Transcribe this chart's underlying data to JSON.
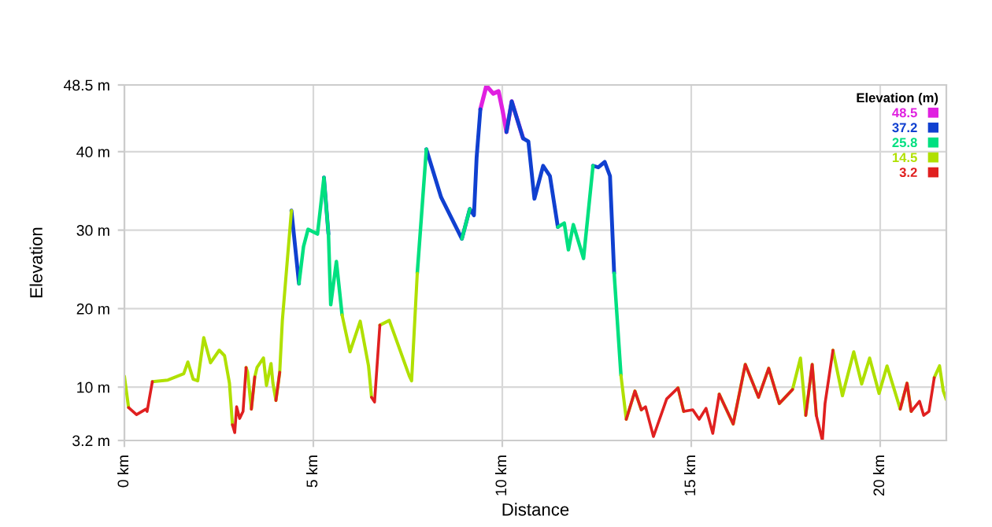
{
  "chart_data": {
    "type": "line",
    "xlabel": "Distance",
    "ylabel": "Elevation",
    "legend_title": "Elevation (m)",
    "legend": "top right",
    "x": [
      0,
      0.11,
      0.32,
      0.57,
      0.6,
      0.74,
      1.15,
      1.57,
      1.68,
      1.82,
      1.94,
      2.1,
      2.28,
      2.51,
      2.65,
      2.78,
      2.86,
      2.92,
      2.97,
      3.05,
      3.14,
      3.22,
      3.26,
      3.36,
      3.45,
      3.51,
      3.68,
      3.76,
      3.88,
      3.93,
      4.01,
      4.11,
      4.18,
      4.42,
      4.62,
      4.74,
      4.86,
      5.11,
      5.28,
      5.4,
      5.46,
      5.61,
      5.76,
      5.97,
      6.24,
      6.46,
      6.54,
      6.62,
      6.76,
      7.01,
      7.54,
      7.6,
      7.75,
      7.99,
      8.38,
      8.93,
      9.14,
      9.25,
      9.32,
      9.42,
      9.58,
      9.76,
      9.9,
      10.01,
      10.11,
      10.25,
      10.55,
      10.69,
      10.85,
      11.08,
      11.26,
      11.47,
      11.64,
      11.75,
      11.88,
      12.15,
      12.4,
      12.54,
      12.71,
      12.85,
      12.96,
      13.14,
      13.28,
      13.51,
      13.68,
      13.79,
      14.0,
      14.35,
      14.65,
      14.8,
      15.04,
      15.21,
      15.39,
      15.57,
      15.74,
      16.11,
      16.43,
      16.78,
      17.05,
      17.33,
      17.68,
      17.89,
      18.03,
      18.2,
      18.31,
      18.47,
      18.54,
      18.75,
      19.0,
      19.3,
      19.51,
      19.72,
      19.97,
      20.18,
      20.53,
      20.71,
      20.82,
      21.04,
      21.15,
      21.29,
      21.43,
      21.57,
      21.67,
      21.75
    ],
    "series": [
      {
        "name": "48.5",
        "color": "#e020e0",
        "values": [
          null,
          null,
          null,
          null,
          null,
          null,
          null,
          null,
          null,
          null,
          null,
          null,
          null,
          null,
          null,
          null,
          null,
          null,
          null,
          null,
          null,
          null,
          null,
          null,
          null,
          null,
          null,
          null,
          null,
          null,
          null,
          null,
          null,
          null,
          null,
          null,
          null,
          null,
          null,
          null,
          null,
          null,
          null,
          null,
          null,
          null,
          null,
          null,
          null,
          null,
          null,
          null,
          null,
          null,
          null,
          null,
          null,
          null,
          null,
          45.4,
          48.4,
          47.4,
          47.7,
          45.2,
          42.5,
          46.4,
          41.7,
          null,
          null,
          null,
          null,
          null,
          null,
          null,
          null,
          null,
          null,
          null,
          null,
          null,
          null,
          null,
          null,
          null,
          null,
          null,
          null,
          null,
          null,
          null,
          null,
          null,
          null,
          null,
          null,
          null,
          null,
          null,
          null,
          null,
          null,
          null,
          null,
          null,
          null,
          null,
          null,
          null,
          null,
          null,
          null,
          null,
          null,
          null,
          null,
          null,
          null,
          null,
          null,
          null,
          null,
          null,
          null,
          null
        ]
      },
      {
        "name": "37.2",
        "color": "#1040d0",
        "values": [
          null,
          null,
          null,
          null,
          null,
          null,
          null,
          null,
          null,
          null,
          null,
          null,
          null,
          null,
          null,
          null,
          null,
          null,
          null,
          null,
          null,
          null,
          null,
          null,
          null,
          null,
          null,
          null,
          null,
          null,
          null,
          null,
          null,
          32.5,
          23.2,
          null,
          null,
          null,
          36.7,
          29.5,
          null,
          null,
          null,
          null,
          null,
          null,
          null,
          null,
          null,
          null,
          null,
          null,
          null,
          40.3,
          34.2,
          28.9,
          32.7,
          31.9,
          39.2,
          45.4,
          null,
          null,
          null,
          null,
          42.5,
          46.4,
          41.7,
          41.3,
          34.0,
          38.2,
          36.9,
          30.4,
          null,
          null,
          null,
          null,
          38.2,
          38.0,
          38.7,
          36.9,
          24.5,
          null,
          null,
          null,
          null,
          null,
          null,
          null,
          null,
          null,
          null,
          null,
          null,
          null,
          null,
          null,
          null,
          null,
          null,
          null,
          null,
          null,
          null,
          null,
          null,
          null,
          null,
          null,
          null,
          null,
          null,
          null,
          null,
          null,
          null,
          null,
          null,
          null,
          null,
          null,
          null,
          null,
          null,
          null
        ]
      },
      {
        "name": "25.8",
        "color": "#00e080",
        "values": [
          null,
          null,
          null,
          null,
          null,
          null,
          null,
          null,
          null,
          null,
          null,
          null,
          null,
          null,
          null,
          null,
          null,
          null,
          null,
          null,
          null,
          null,
          null,
          null,
          null,
          null,
          null,
          null,
          null,
          null,
          null,
          null,
          null,
          null,
          23.2,
          27.9,
          30.1,
          29.5,
          36.7,
          29.5,
          20.5,
          26.0,
          19.2,
          null,
          null,
          null,
          null,
          null,
          null,
          null,
          null,
          null,
          24.5,
          40.3,
          null,
          28.9,
          32.7,
          null,
          null,
          null,
          null,
          null,
          null,
          null,
          null,
          null,
          null,
          null,
          null,
          null,
          null,
          30.4,
          30.9,
          27.5,
          30.7,
          26.4,
          38.2,
          null,
          null,
          null,
          24.5,
          11.5,
          null,
          null,
          null,
          null,
          null,
          null,
          null,
          null,
          null,
          null,
          null,
          null,
          null,
          null,
          null,
          null,
          null,
          null,
          null,
          null,
          null,
          null,
          null,
          null,
          null,
          null,
          null,
          null,
          null,
          null,
          null,
          null,
          null,
          null,
          null,
          null,
          null,
          null,
          null,
          null,
          null,
          null
        ]
      },
      {
        "name": "14.5",
        "color": "#b0e000",
        "values": [
          11.4,
          7.4,
          null,
          null,
          null,
          10.7,
          10.9,
          11.7,
          13.2,
          11.0,
          10.8,
          16.3,
          13.1,
          14.7,
          14.0,
          10.5,
          5.2,
          null,
          null,
          null,
          null,
          12.5,
          11.9,
          7.2,
          11.3,
          12.5,
          13.7,
          10.2,
          13.0,
          10.5,
          8.3,
          11.9,
          18.5,
          32.5,
          null,
          null,
          null,
          null,
          null,
          null,
          null,
          null,
          19.2,
          14.5,
          18.4,
          12.7,
          8.7,
          null,
          17.9,
          18.5,
          11.4,
          10.8,
          24.5,
          null,
          null,
          null,
          null,
          null,
          null,
          null,
          null,
          null,
          null,
          null,
          null,
          null,
          null,
          null,
          null,
          null,
          null,
          null,
          null,
          null,
          null,
          null,
          null,
          null,
          null,
          null,
          null,
          11.5,
          5.9,
          9.5,
          7.1,
          null,
          null,
          null,
          9.9,
          6.9,
          null,
          null,
          null,
          null,
          9.1,
          5.3,
          12.9,
          8.7,
          12.4,
          7.9,
          9.7,
          13.7,
          6.4,
          12.9,
          6.4,
          null,
          null,
          14.7,
          8.9,
          14.5,
          10.4,
          13.7,
          9.2,
          12.7,
          7.2,
          10.5,
          6.9,
          null,
          null,
          null,
          11.2,
          12.7,
          9.5,
          8.4
        ]
      },
      {
        "name": "3.2",
        "color": "#e02020",
        "values": [
          null,
          7.4,
          6.5,
          7.2,
          6.9,
          10.7,
          null,
          null,
          null,
          null,
          null,
          null,
          null,
          null,
          null,
          null,
          5.2,
          4.2,
          7.5,
          6.0,
          6.9,
          12.5,
          null,
          7.2,
          11.3,
          null,
          null,
          null,
          null,
          null,
          8.3,
          11.9,
          null,
          null,
          null,
          null,
          null,
          null,
          null,
          null,
          null,
          null,
          null,
          null,
          null,
          null,
          8.7,
          8.1,
          17.9,
          null,
          null,
          null,
          null,
          null,
          null,
          null,
          null,
          null,
          null,
          null,
          null,
          null,
          null,
          null,
          null,
          null,
          null,
          null,
          null,
          null,
          null,
          null,
          null,
          null,
          null,
          null,
          null,
          null,
          null,
          null,
          null,
          null,
          5.9,
          9.5,
          7.1,
          7.5,
          3.7,
          8.5,
          9.9,
          6.9,
          7.1,
          5.9,
          7.3,
          4.1,
          9.1,
          5.3,
          12.9,
          8.7,
          12.4,
          7.9,
          9.7,
          null,
          6.4,
          12.9,
          6.4,
          3.2,
          7.9,
          14.7,
          null,
          null,
          null,
          null,
          null,
          null,
          7.2,
          10.5,
          6.9,
          8.2,
          6.4,
          6.9,
          11.2,
          null,
          null,
          null
        ]
      }
    ],
    "xlim": [
      0,
      21.75
    ],
    "xticks": [
      {
        "value": 0,
        "label": "0 km"
      },
      {
        "value": 5,
        "label": "5 km"
      },
      {
        "value": 10,
        "label": "10 km"
      },
      {
        "value": 15,
        "label": "15 km"
      },
      {
        "value": 20,
        "label": "20 km"
      }
    ],
    "ylim": [
      3.2,
      48.5
    ],
    "yticks": [
      {
        "value": 3.2,
        "label": "3.2 m"
      },
      {
        "value": 10,
        "label": "10 m"
      },
      {
        "value": 20,
        "label": "20 m"
      },
      {
        "value": 30,
        "label": "30 m"
      },
      {
        "value": 40,
        "label": "40 m"
      },
      {
        "value": 48.5,
        "label": "48.5 m"
      }
    ],
    "grid": true
  }
}
